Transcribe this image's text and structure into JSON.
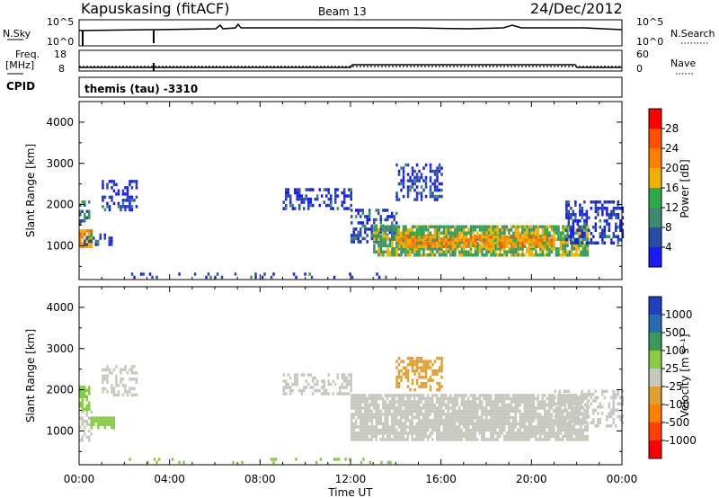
{
  "header": {
    "station": "Kapuskasing (fitACF)",
    "beam": "Beam 13",
    "date": "24/Dec/2012"
  },
  "noise_panel": {
    "left_label": "N.Sky",
    "left_ticks": [
      "10^5",
      "10^0"
    ],
    "right_label": "N.Search",
    "right_ticks": [
      "10^5",
      "10^0"
    ]
  },
  "freq_panel": {
    "left_label_1": "Freq.",
    "left_label_2": "[MHz]",
    "left_ticks": [
      "18",
      "8"
    ],
    "right_label": "Nave",
    "right_ticks": [
      "60",
      "0"
    ]
  },
  "cpid": {
    "label": "CPID",
    "text": "themis (tau) -3310"
  },
  "xaxis": {
    "title": "Time UT",
    "ticks": [
      "00:00",
      "04:00",
      "08:00",
      "12:00",
      "16:00",
      "20:00",
      "00:00"
    ]
  },
  "panels": [
    {
      "ylabel": "Slant Range [km]",
      "yticks": [
        "1000",
        "2000",
        "3000",
        "4000"
      ]
    },
    {
      "ylabel": "Slant Range [km]",
      "yticks": [
        "1000",
        "2000",
        "3000",
        "4000"
      ]
    }
  ],
  "colorbars": {
    "power": {
      "label": "Power [dB]",
      "ticks": [
        "4",
        "8",
        "12",
        "16",
        "20",
        "24",
        "28"
      ],
      "colors": [
        "#1a1aff",
        "#2a4aa8",
        "#3d8a6e",
        "#2fa84a",
        "#f0b000",
        "#ff8000",
        "#ff5000",
        "#ff0000"
      ]
    },
    "velocity": {
      "label": "Velocity [m s⁻¹]",
      "ticks": [
        "1000",
        "500",
        "100",
        "25",
        "-25",
        "-100",
        "-500",
        "-1000"
      ],
      "colors": [
        "#2040c0",
        "#2a6ab0",
        "#3a9a5a",
        "#88cc44",
        "#c8c8c0",
        "#e0a030",
        "#ff8000",
        "#ff4000",
        "#ff0000"
      ]
    }
  },
  "chart_data": [
    {
      "type": "heatmap",
      "title": "Power [dB]",
      "xlabel": "Time UT",
      "ylabel": "Slant Range [km]",
      "xlim": [
        0,
        24
      ],
      "ylim": [
        180,
        4500
      ],
      "clim": [
        0,
        32
      ],
      "regions": [
        {
          "t0": 0.0,
          "t1": 0.5,
          "r0": 950,
          "r1": 1400,
          "value": 20
        },
        {
          "t0": 0.1,
          "t1": 1.5,
          "r0": 1050,
          "r1": 1300,
          "value": 5
        },
        {
          "t0": 0.0,
          "t1": 0.4,
          "r0": 1500,
          "r1": 2100,
          "value": 10
        },
        {
          "t0": 1.0,
          "t1": 2.5,
          "r0": 1900,
          "r1": 2600,
          "value": 4
        },
        {
          "t0": 9.0,
          "t1": 12.0,
          "r0": 1900,
          "r1": 2400,
          "value": 4
        },
        {
          "t0": 12.0,
          "t1": 14.0,
          "r0": 1100,
          "r1": 1900,
          "value": 6
        },
        {
          "t0": 13.0,
          "t1": 22.5,
          "r0": 800,
          "r1": 1500,
          "value": 14
        },
        {
          "t0": 14.0,
          "t1": 21.0,
          "r0": 950,
          "r1": 1250,
          "value": 20
        },
        {
          "t0": 14.0,
          "t1": 16.0,
          "r0": 2100,
          "r1": 3000,
          "value": 4
        },
        {
          "t0": 21.5,
          "t1": 24.0,
          "r0": 1100,
          "r1": 2100,
          "value": 4
        },
        {
          "t0": 2.0,
          "t1": 14.0,
          "r0": 200,
          "r1": 350,
          "value": 5
        }
      ]
    },
    {
      "type": "heatmap",
      "title": "Velocity [m s⁻¹]",
      "xlabel": "Time UT",
      "ylabel": "Slant Range [km]",
      "xlim": [
        0,
        24
      ],
      "ylim": [
        180,
        4500
      ],
      "clim": [
        -1000,
        1000
      ],
      "regions": [
        {
          "t0": 0.0,
          "t1": 0.5,
          "r0": 800,
          "r1": 1500,
          "value": 0
        },
        {
          "t0": 0.5,
          "t1": 1.5,
          "r0": 1100,
          "r1": 1350,
          "value": 80
        },
        {
          "t0": 0.0,
          "t1": 0.4,
          "r0": 1500,
          "r1": 2100,
          "value": 60
        },
        {
          "t0": 1.0,
          "t1": 2.5,
          "r0": 1900,
          "r1": 2600,
          "value": 0
        },
        {
          "t0": 9.0,
          "t1": 12.0,
          "r0": 1900,
          "r1": 2400,
          "value": 0
        },
        {
          "t0": 12.0,
          "t1": 22.5,
          "r0": 800,
          "r1": 1900,
          "value": 0
        },
        {
          "t0": 14.0,
          "t1": 16.0,
          "r0": 2000,
          "r1": 2800,
          "value": -80
        },
        {
          "t0": 21.0,
          "t1": 24.0,
          "r0": 1100,
          "r1": 2000,
          "value": 0
        },
        {
          "t0": 2.0,
          "t1": 14.0,
          "r0": 200,
          "r1": 350,
          "value": 60
        }
      ]
    }
  ]
}
